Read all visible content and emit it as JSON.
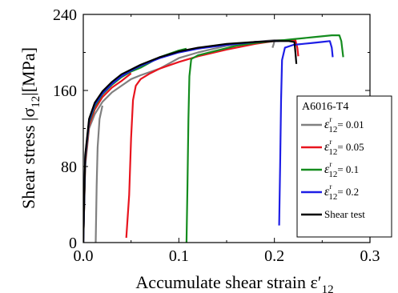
{
  "chart_data": {
    "type": "line",
    "xlabel": "Accumulate shear strain ε′",
    "xlabel_sub": "12",
    "ylabel": "Shear stress |σ",
    "ylabel_sub": "12",
    "ylabel_unit": "|[MPa]",
    "xlim": [
      0.0,
      0.3
    ],
    "ylim": [
      0,
      240
    ],
    "xticks": [
      0.0,
      0.1,
      0.2,
      0.3
    ],
    "xtick_labels": [
      "0.0",
      "0.1",
      "0.2",
      "0.3"
    ],
    "yticks": [
      0,
      80,
      160,
      240
    ],
    "ytick_labels": [
      "0",
      "80",
      "160",
      "240"
    ],
    "grid": false,
    "legend": {
      "title": "A6016-T4",
      "placement": "right"
    },
    "series": [
      {
        "name": "ε12= 0.01",
        "label_prefix": "ε",
        "label_sub": "12",
        "label_sup": "r",
        "label_value": "= 0.01",
        "color": "#808080",
        "segments": [
          [
            [
              0.0,
              0
            ],
            [
              0.002,
              80
            ],
            [
              0.006,
              120
            ],
            [
              0.012,
              135
            ],
            [
              0.02,
              148
            ],
            [
              0.03,
              158
            ],
            [
              0.04,
              165
            ],
            [
              0.05,
              172
            ],
            [
              0.06,
              176
            ],
            [
              0.08,
              183
            ],
            [
              0.1,
              194
            ],
            [
              0.12,
              200
            ],
            [
              0.15,
              207
            ],
            [
              0.18,
              211
            ],
            [
              0.2,
              213
            ],
            [
              0.21,
              213
            ]
          ],
          [
            [
              0.198,
              205
            ],
            [
              0.199,
              208
            ],
            [
              0.2,
              212
            ]
          ],
          [
            [
              0.013,
              0
            ],
            [
              0.014,
              60
            ],
            [
              0.015,
              100
            ],
            [
              0.017,
              130
            ],
            [
              0.02,
              144
            ]
          ]
        ]
      },
      {
        "name": "ε12= 0.05",
        "label_prefix": "ε",
        "label_sub": "12",
        "label_sup": "r",
        "label_value": "= 0.05",
        "color": "#e8141e",
        "segments": [
          [
            [
              0.0,
              0
            ],
            [
              0.002,
              85
            ],
            [
              0.006,
              123
            ],
            [
              0.012,
              140
            ],
            [
              0.02,
              153
            ],
            [
              0.03,
              163
            ],
            [
              0.04,
              170
            ],
            [
              0.05,
              178
            ]
          ],
          [
            [
              0.045,
              5
            ],
            [
              0.048,
              50
            ],
            [
              0.05,
              110
            ],
            [
              0.052,
              150
            ],
            [
              0.055,
              165
            ],
            [
              0.06,
              172
            ],
            [
              0.07,
              178
            ],
            [
              0.08,
              183
            ],
            [
              0.1,
              190
            ],
            [
              0.12,
              196
            ],
            [
              0.15,
              203
            ],
            [
              0.18,
              209
            ],
            [
              0.2,
              212
            ],
            [
              0.215,
              213
            ],
            [
              0.222,
              213
            ],
            [
              0.224,
              205
            ],
            [
              0.225,
              196
            ]
          ]
        ]
      },
      {
        "name": "ε12= 0.1",
        "label_prefix": "ε",
        "label_sub": "12",
        "label_sup": "r",
        "label_value": "= 0.1",
        "color": "#148c1e",
        "segments": [
          [
            [
              0.0,
              0
            ],
            [
              0.002,
              88
            ],
            [
              0.006,
              126
            ],
            [
              0.012,
              143
            ],
            [
              0.02,
              156
            ],
            [
              0.03,
              166
            ],
            [
              0.04,
              174
            ],
            [
              0.05,
              180
            ],
            [
              0.06,
              184
            ],
            [
              0.08,
              195
            ],
            [
              0.1,
              202
            ],
            [
              0.108,
              204
            ]
          ],
          [
            [
              0.108,
              0
            ],
            [
              0.109,
              60
            ],
            [
              0.11,
              130
            ],
            [
              0.111,
              175
            ],
            [
              0.113,
              193
            ],
            [
              0.12,
              197
            ],
            [
              0.14,
              202
            ],
            [
              0.16,
              207
            ],
            [
              0.18,
              210
            ],
            [
              0.2,
              212
            ],
            [
              0.22,
              214
            ],
            [
              0.24,
              216
            ],
            [
              0.26,
              218
            ],
            [
              0.268,
              218
            ],
            [
              0.27,
              212
            ],
            [
              0.272,
              195
            ]
          ]
        ]
      },
      {
        "name": "ε12= 0.2",
        "label_prefix": "ε",
        "label_sub": "12",
        "label_sup": "r",
        "label_value": "= 0.2",
        "color": "#1e1ee6",
        "segments": [
          [
            [
              0.0,
              0
            ],
            [
              0.002,
              90
            ],
            [
              0.006,
              128
            ],
            [
              0.012,
              145
            ],
            [
              0.02,
              157
            ],
            [
              0.03,
              167
            ],
            [
              0.04,
              175
            ],
            [
              0.05,
              181
            ],
            [
              0.06,
              186
            ],
            [
              0.08,
              194
            ],
            [
              0.1,
              200
            ],
            [
              0.12,
              204
            ],
            [
              0.15,
              208
            ],
            [
              0.18,
              211
            ],
            [
              0.2,
              212
            ],
            [
              0.205,
              212
            ]
          ],
          [
            [
              0.205,
              18
            ],
            [
              0.206,
              80
            ],
            [
              0.207,
              150
            ],
            [
              0.208,
              192
            ],
            [
              0.211,
              205
            ],
            [
              0.22,
              208
            ],
            [
              0.23,
              209
            ],
            [
              0.24,
              210
            ],
            [
              0.25,
              211
            ],
            [
              0.258,
              212
            ],
            [
              0.26,
              205
            ],
            [
              0.261,
              195
            ]
          ]
        ]
      },
      {
        "name": "Shear test",
        "label_text": "Shear test",
        "color": "#000000",
        "segments": [
          [
            [
              0.0,
              0
            ],
            [
              0.002,
              92
            ],
            [
              0.006,
              130
            ],
            [
              0.012,
              147
            ],
            [
              0.02,
              159
            ],
            [
              0.03,
              169
            ],
            [
              0.04,
              177
            ],
            [
              0.05,
              182
            ],
            [
              0.06,
              187
            ],
            [
              0.08,
              195
            ],
            [
              0.1,
              201
            ],
            [
              0.12,
              205
            ],
            [
              0.15,
              209
            ],
            [
              0.18,
              211
            ],
            [
              0.2,
              212
            ],
            [
              0.215,
              212
            ],
            [
              0.221,
              211
            ],
            [
              0.222,
              200
            ],
            [
              0.223,
              188
            ]
          ]
        ]
      }
    ]
  }
}
